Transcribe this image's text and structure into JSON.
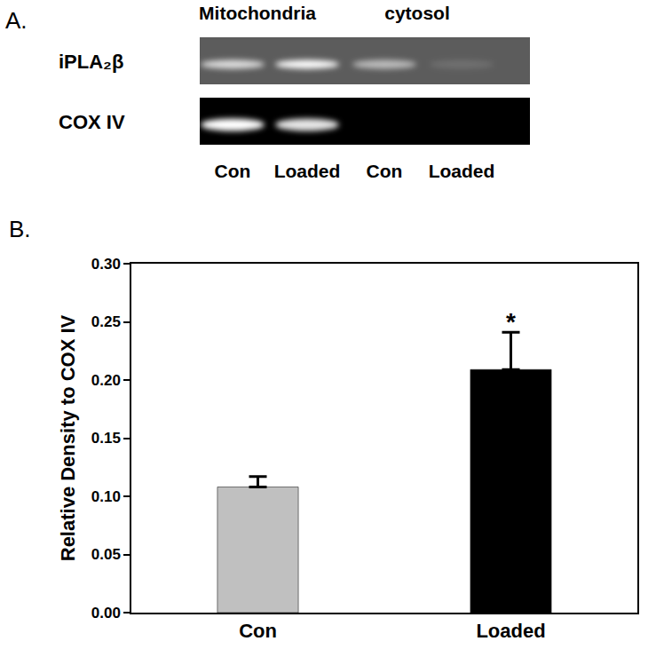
{
  "blot": {
    "panel_label": "A.",
    "column_groups": [
      "Mitochondria",
      "cytosol"
    ],
    "lanes": [
      "Con",
      "Loaded",
      "Con",
      "Loaded"
    ],
    "rows": [
      {
        "label": "iPLA₂β",
        "band_intensity": [
          0.8,
          1.0,
          0.6,
          0.12
        ]
      },
      {
        "label": "COX IV",
        "band_intensity": [
          1.0,
          0.9,
          0,
          0
        ]
      }
    ]
  },
  "chart_data": {
    "type": "bar",
    "panel_label": "B.",
    "y_label": "Relative Density to COX IV",
    "categories": [
      "Con",
      "Loaded"
    ],
    "values": [
      0.108,
      0.209
    ],
    "errors": [
      0.009,
      0.032
    ],
    "colors": [
      "#c0c0c0",
      "#000000"
    ],
    "annotations": [
      {
        "category": "Loaded",
        "text": "*"
      }
    ],
    "ylim": [
      0,
      0.3
    ],
    "yticks": [
      {
        "value": 0,
        "label": "0.00"
      },
      {
        "value": 0.05,
        "label": "0.05"
      },
      {
        "value": 0.1,
        "label": "0.10"
      },
      {
        "value": 0.15,
        "label": "0.15"
      },
      {
        "value": 0.2,
        "label": "0.20"
      },
      {
        "value": 0.25,
        "label": "0.25"
      },
      {
        "value": 0.3,
        "label": "0.30"
      }
    ],
    "grid": false
  }
}
